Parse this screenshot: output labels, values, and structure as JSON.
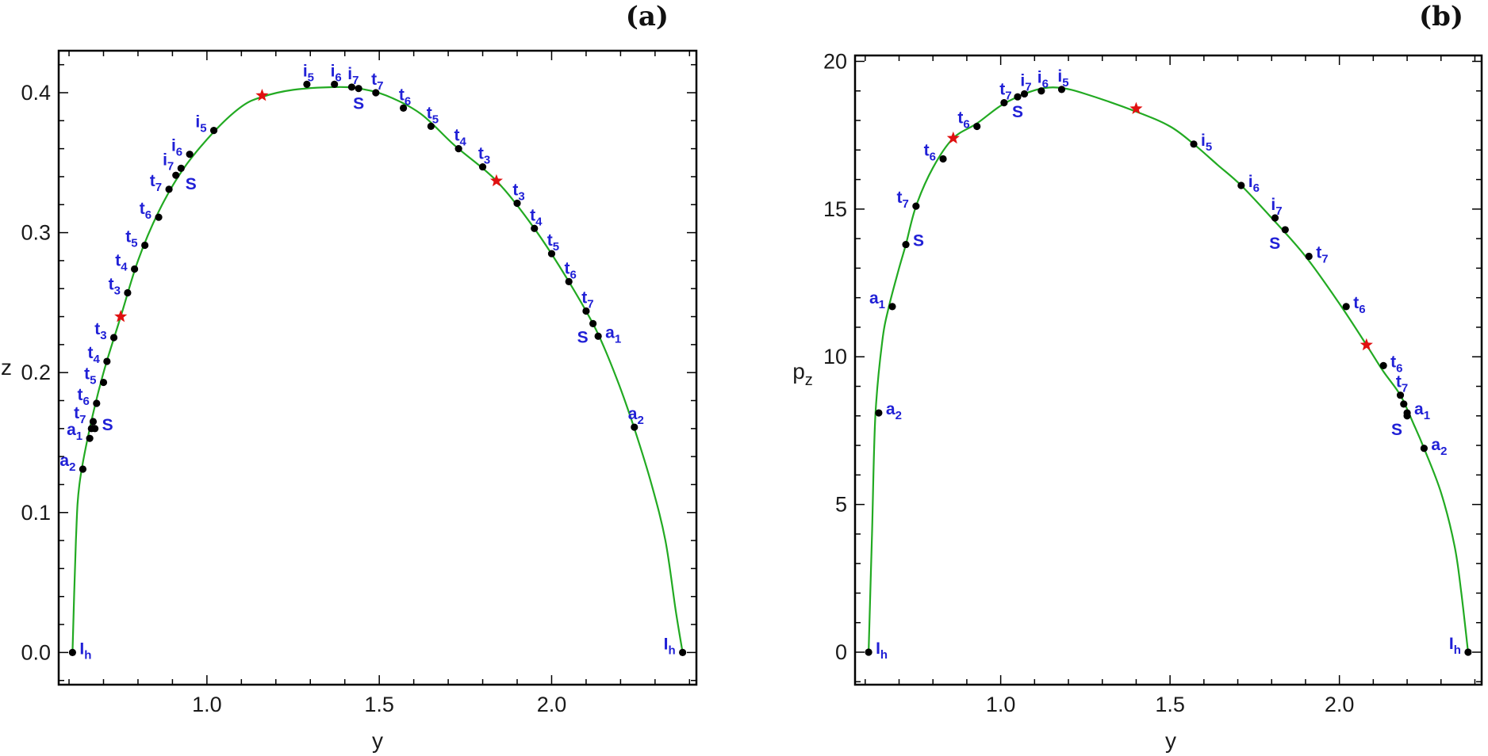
{
  "colors": {
    "curve": "#22aa22",
    "point": "#000000",
    "star": "#e01010",
    "label": "#2020d6",
    "frame": "#000000"
  },
  "chart_data": [
    {
      "type": "line",
      "panel_label": "(a)",
      "xlabel": "y",
      "ylabel": "z",
      "xlim": [
        0.57,
        2.42
      ],
      "ylim": [
        -0.023,
        0.43
      ],
      "xticks": [
        "1.0",
        "1.5",
        "2.0"
      ],
      "yticks": [
        "0.0",
        "0.1",
        "0.2",
        "0.3",
        "0.4"
      ],
      "curve": [
        [
          0.61,
          0.0
        ],
        [
          0.62,
          0.08
        ],
        [
          0.63,
          0.12
        ],
        [
          0.66,
          0.16
        ],
        [
          0.7,
          0.2
        ],
        [
          0.75,
          0.24
        ],
        [
          0.8,
          0.28
        ],
        [
          0.86,
          0.315
        ],
        [
          0.93,
          0.345
        ],
        [
          1.02,
          0.372
        ],
        [
          1.1,
          0.39
        ],
        [
          1.16,
          0.397
        ],
        [
          1.25,
          0.402
        ],
        [
          1.37,
          0.404
        ],
        [
          1.44,
          0.403
        ],
        [
          1.52,
          0.398
        ],
        [
          1.62,
          0.385
        ],
        [
          1.72,
          0.362
        ],
        [
          1.84,
          0.337
        ],
        [
          1.95,
          0.303
        ],
        [
          2.05,
          0.265
        ],
        [
          2.13,
          0.23
        ],
        [
          2.19,
          0.195
        ],
        [
          2.24,
          0.16
        ],
        [
          2.29,
          0.12
        ],
        [
          2.33,
          0.08
        ],
        [
          2.36,
          0.03
        ],
        [
          2.38,
          0.0
        ]
      ],
      "points": [
        {
          "x": 0.61,
          "y": 0.0,
          "label": "I",
          "sub": "h",
          "pos": "r"
        },
        {
          "x": 0.64,
          "y": 0.131,
          "label": "a",
          "sub": "2",
          "pos": "l"
        },
        {
          "x": 0.66,
          "y": 0.153,
          "label": "a",
          "sub": "1",
          "pos": "l"
        },
        {
          "x": 0.665,
          "y": 0.16,
          "label": "",
          "sub": "",
          "pos": "l"
        },
        {
          "x": 0.67,
          "y": 0.165,
          "label": "t",
          "sub": "7",
          "pos": "l"
        },
        {
          "x": 0.675,
          "y": 0.16,
          "label": "S",
          "sub": "",
          "pos": "r"
        },
        {
          "x": 0.68,
          "y": 0.178,
          "label": "t",
          "sub": "6",
          "pos": "l"
        },
        {
          "x": 0.7,
          "y": 0.193,
          "label": "t",
          "sub": "5",
          "pos": "l"
        },
        {
          "x": 0.71,
          "y": 0.208,
          "label": "t",
          "sub": "4",
          "pos": "l"
        },
        {
          "x": 0.73,
          "y": 0.225,
          "label": "t",
          "sub": "3",
          "pos": "l"
        },
        {
          "x": 0.77,
          "y": 0.257,
          "label": "t",
          "sub": "3",
          "pos": "l"
        },
        {
          "x": 0.79,
          "y": 0.274,
          "label": "t",
          "sub": "4",
          "pos": "l"
        },
        {
          "x": 0.82,
          "y": 0.291,
          "label": "t",
          "sub": "5",
          "pos": "l"
        },
        {
          "x": 0.86,
          "y": 0.311,
          "label": "t",
          "sub": "6",
          "pos": "l"
        },
        {
          "x": 0.89,
          "y": 0.331,
          "label": "t",
          "sub": "7",
          "pos": "l"
        },
        {
          "x": 0.91,
          "y": 0.341,
          "label": "S",
          "sub": "",
          "pos": "rs"
        },
        {
          "x": 0.925,
          "y": 0.346,
          "label": "i",
          "sub": "7",
          "pos": "l"
        },
        {
          "x": 0.95,
          "y": 0.356,
          "label": "i",
          "sub": "6",
          "pos": "l"
        },
        {
          "x": 1.02,
          "y": 0.373,
          "label": "i",
          "sub": "5",
          "pos": "l"
        },
        {
          "x": 1.29,
          "y": 0.406,
          "label": "i",
          "sub": "5",
          "pos": "t"
        },
        {
          "x": 1.37,
          "y": 0.406,
          "label": "i",
          "sub": "6",
          "pos": "t"
        },
        {
          "x": 1.42,
          "y": 0.404,
          "label": "i",
          "sub": "7",
          "pos": "t"
        },
        {
          "x": 1.44,
          "y": 0.403,
          "label": "S",
          "sub": "",
          "pos": "b"
        },
        {
          "x": 1.49,
          "y": 0.4,
          "label": "t",
          "sub": "7",
          "pos": "t"
        },
        {
          "x": 1.57,
          "y": 0.389,
          "label": "t",
          "sub": "6",
          "pos": "t"
        },
        {
          "x": 1.65,
          "y": 0.376,
          "label": "t",
          "sub": "5",
          "pos": "t"
        },
        {
          "x": 1.73,
          "y": 0.36,
          "label": "t",
          "sub": "4",
          "pos": "t"
        },
        {
          "x": 1.8,
          "y": 0.347,
          "label": "t",
          "sub": "3",
          "pos": "t"
        },
        {
          "x": 1.9,
          "y": 0.321,
          "label": "t",
          "sub": "3",
          "pos": "t"
        },
        {
          "x": 1.95,
          "y": 0.303,
          "label": "t",
          "sub": "4",
          "pos": "t"
        },
        {
          "x": 2.0,
          "y": 0.285,
          "label": "t",
          "sub": "5",
          "pos": "t"
        },
        {
          "x": 2.05,
          "y": 0.265,
          "label": "t",
          "sub": "6",
          "pos": "t"
        },
        {
          "x": 2.1,
          "y": 0.244,
          "label": "t",
          "sub": "7",
          "pos": "t"
        },
        {
          "x": 2.12,
          "y": 0.235,
          "label": "S",
          "sub": "",
          "pos": "lb"
        },
        {
          "x": 2.135,
          "y": 0.226,
          "label": "a",
          "sub": "1",
          "pos": "r"
        },
        {
          "x": 2.24,
          "y": 0.161,
          "label": "a",
          "sub": "2",
          "pos": "t"
        },
        {
          "x": 2.38,
          "y": 0.0,
          "label": "I",
          "sub": "h",
          "pos": "l"
        }
      ],
      "stars": [
        [
          0.75,
          0.24
        ],
        [
          1.16,
          0.398
        ],
        [
          1.84,
          0.337
        ]
      ]
    },
    {
      "type": "line",
      "panel_label": "(b)",
      "xlabel": "y",
      "ylabel": "p_z",
      "ylabel_main": "p",
      "ylabel_sub": "z",
      "xlim": [
        0.57,
        2.42
      ],
      "ylim": [
        -1.1,
        20.2
      ],
      "xticks": [
        "1.0",
        "1.5",
        "2.0"
      ],
      "yticks": [
        "0",
        "5",
        "10",
        "15",
        "20"
      ],
      "curve": [
        [
          0.61,
          0.0
        ],
        [
          0.62,
          4.0
        ],
        [
          0.63,
          8.0
        ],
        [
          0.65,
          10.5
        ],
        [
          0.67,
          11.7
        ],
        [
          0.7,
          13.0
        ],
        [
          0.72,
          13.8
        ],
        [
          0.75,
          15.1
        ],
        [
          0.8,
          16.4
        ],
        [
          0.86,
          17.4
        ],
        [
          0.93,
          17.9
        ],
        [
          1.0,
          18.5
        ],
        [
          1.07,
          18.9
        ],
        [
          1.13,
          19.1
        ],
        [
          1.18,
          19.1
        ],
        [
          1.25,
          18.9
        ],
        [
          1.4,
          18.3
        ],
        [
          1.5,
          17.8
        ],
        [
          1.57,
          17.2
        ],
        [
          1.64,
          16.5
        ],
        [
          1.71,
          15.8
        ],
        [
          1.8,
          14.7
        ],
        [
          1.9,
          13.4
        ],
        [
          2.0,
          11.8
        ],
        [
          2.08,
          10.4
        ],
        [
          2.13,
          9.5
        ],
        [
          2.18,
          8.7
        ],
        [
          2.22,
          7.7
        ],
        [
          2.25,
          6.9
        ],
        [
          2.3,
          5.4
        ],
        [
          2.34,
          3.6
        ],
        [
          2.36,
          2.0
        ],
        [
          2.38,
          0.0
        ]
      ],
      "points": [
        {
          "x": 0.61,
          "y": 0.0,
          "label": "I",
          "sub": "h",
          "pos": "r"
        },
        {
          "x": 0.64,
          "y": 8.1,
          "label": "a",
          "sub": "2",
          "pos": "r"
        },
        {
          "x": 0.68,
          "y": 11.7,
          "label": "a",
          "sub": "1",
          "pos": "l"
        },
        {
          "x": 0.72,
          "y": 13.8,
          "label": "S",
          "sub": "",
          "pos": "r"
        },
        {
          "x": 0.75,
          "y": 15.1,
          "label": "t",
          "sub": "7",
          "pos": "l"
        },
        {
          "x": 0.83,
          "y": 16.7,
          "label": "t",
          "sub": "6",
          "pos": "l"
        },
        {
          "x": 0.93,
          "y": 17.8,
          "label": "t",
          "sub": "6",
          "pos": "l"
        },
        {
          "x": 1.01,
          "y": 18.6,
          "label": "t",
          "sub": "7",
          "pos": "t"
        },
        {
          "x": 1.05,
          "y": 18.8,
          "label": "S",
          "sub": "",
          "pos": "b"
        },
        {
          "x": 1.07,
          "y": 18.9,
          "label": "i",
          "sub": "7",
          "pos": "t"
        },
        {
          "x": 1.12,
          "y": 19.0,
          "label": "i",
          "sub": "6",
          "pos": "t"
        },
        {
          "x": 1.18,
          "y": 19.05,
          "label": "i",
          "sub": "5",
          "pos": "t"
        },
        {
          "x": 1.57,
          "y": 17.2,
          "label": "i",
          "sub": "5",
          "pos": "r"
        },
        {
          "x": 1.71,
          "y": 15.8,
          "label": "i",
          "sub": "6",
          "pos": "r"
        },
        {
          "x": 1.81,
          "y": 14.7,
          "label": "i",
          "sub": "7",
          "pos": "t"
        },
        {
          "x": 1.84,
          "y": 14.3,
          "label": "S",
          "sub": "",
          "pos": "lb"
        },
        {
          "x": 1.91,
          "y": 13.4,
          "label": "t",
          "sub": "7",
          "pos": "r"
        },
        {
          "x": 2.02,
          "y": 11.7,
          "label": "t",
          "sub": "6",
          "pos": "r"
        },
        {
          "x": 2.13,
          "y": 9.7,
          "label": "t",
          "sub": "6",
          "pos": "r"
        },
        {
          "x": 2.18,
          "y": 8.7,
          "label": "t",
          "sub": "7",
          "pos": "t"
        },
        {
          "x": 2.19,
          "y": 8.4,
          "label": "",
          "sub": "",
          "pos": "r"
        },
        {
          "x": 2.2,
          "y": 8.1,
          "label": "a",
          "sub": "1",
          "pos": "r"
        },
        {
          "x": 2.2,
          "y": 8.0,
          "label": "S",
          "sub": "",
          "pos": "lb"
        },
        {
          "x": 2.25,
          "y": 6.9,
          "label": "a",
          "sub": "2",
          "pos": "r"
        },
        {
          "x": 2.38,
          "y": 0.0,
          "label": "I",
          "sub": "h",
          "pos": "l"
        }
      ],
      "stars": [
        [
          0.86,
          17.4
        ],
        [
          1.4,
          18.4
        ],
        [
          2.08,
          10.4
        ]
      ]
    }
  ]
}
